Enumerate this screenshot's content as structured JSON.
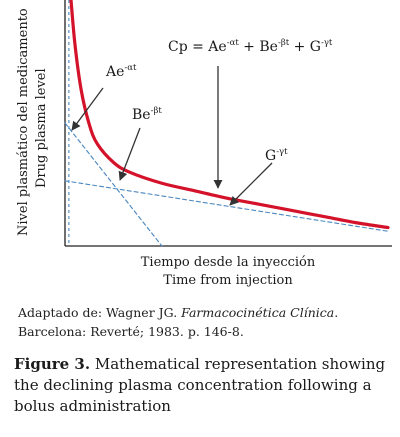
{
  "chart_data": {
    "type": "line",
    "title": "",
    "ylabel": "Nivel plasmático del medicamento",
    "ylabel2": "Drug plasma level",
    "xlabel": "Tiempo desde la inyección",
    "xlabel2": "Time from injection",
    "equation": {
      "lhs": "Cp = Ae",
      "e1": "-αt",
      "m1": " + Be",
      "e2": "-βt",
      "m2": " + G",
      "e3": "-γt"
    },
    "annotations": [
      {
        "base": "Ae",
        "exp": "-αt"
      },
      {
        "base": "Be",
        "exp": "-βt"
      },
      {
        "base": "G",
        "exp": "-γt"
      }
    ],
    "xlim": [
      0,
      10
    ],
    "ylim": [
      0,
      10
    ],
    "grid": false,
    "legend": "none",
    "series": [
      {
        "role": "total",
        "color": "#d4122a",
        "x": [
          0.15,
          0.3,
          0.5,
          0.75,
          1.0,
          1.5,
          2.0,
          3.0,
          4.0,
          5.0,
          6.0,
          7.0,
          8.0,
          9.0,
          10.0
        ],
        "y": [
          10.6,
          8.3,
          6.35,
          4.95,
          4.15,
          3.4,
          3.0,
          2.55,
          2.25,
          1.95,
          1.7,
          1.45,
          1.2,
          0.95,
          0.75
        ]
      },
      {
        "role": "alpha-phase",
        "color": "#4b88c0",
        "x": [
          0,
          3.0
        ],
        "y": [
          5.0,
          0
        ]
      },
      {
        "role": "beta-phase",
        "color": "#4b88c0",
        "x": [
          0,
          10.0
        ],
        "y": [
          2.65,
          0.6
        ]
      }
    ],
    "baseline_vline_x": 0.12
  },
  "source": {
    "prefix": "Adaptado de: Wagner JG. ",
    "title": "Farmacocinética Clínica",
    "suffix": ". Barcelona: Reverté; 1983. p. 146-8."
  },
  "caption": {
    "label": "Figure 3.",
    "text": " Mathematical representation showing the declining plasma concentration following a bolus administration"
  }
}
